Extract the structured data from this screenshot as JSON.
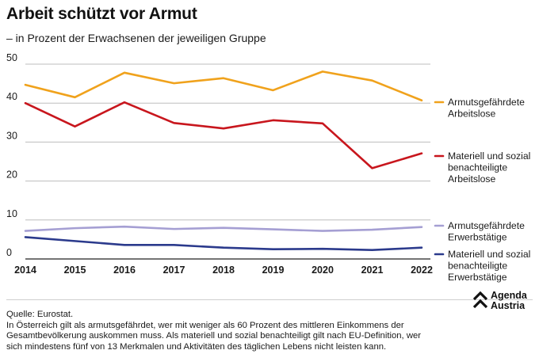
{
  "header": {
    "title": "Arbeit schützt vor Armut",
    "subtitle": "– in Prozent der Erwachsenen der jeweiligen Gruppe"
  },
  "chart_data": {
    "type": "line",
    "x": [
      "2014",
      "2015",
      "2016",
      "2017",
      "2018",
      "2019",
      "2020",
      "2021",
      "2022"
    ],
    "y_ticks": [
      "0",
      "10",
      "20",
      "30",
      "40",
      "50"
    ],
    "ylim": [
      0,
      50
    ],
    "grid": true,
    "legend_position": "right",
    "series": [
      {
        "name": "Armutsgefährdete Arbeitslose",
        "label_lines": [
          "Armutsgefährdete",
          "Arbeitslose"
        ],
        "color": "#f0a21c",
        "values": [
          44.7,
          41.5,
          47.8,
          45.1,
          46.4,
          43.3,
          48.1,
          45.8,
          40.7
        ]
      },
      {
        "name": "Materiell und sozial benachteiligte Arbeitslose",
        "label_lines": [
          "Materiell und sozial",
          "benachteiligte",
          "Arbeitslose"
        ],
        "color": "#c8161d",
        "values": [
          40.0,
          34.0,
          40.2,
          34.9,
          33.5,
          35.6,
          34.8,
          23.3,
          27.1
        ]
      },
      {
        "name": "Armutsgefährdete Erwerbstätige",
        "label_lines": [
          "Armutsgefährdete",
          "Erwerbstätige"
        ],
        "color": "#a59fd3",
        "values": [
          7.2,
          7.9,
          8.3,
          7.7,
          8.0,
          7.6,
          7.2,
          7.5,
          8.2
        ]
      },
      {
        "name": "Materiell und sozial benachteiligte Erwerbstätige",
        "label_lines": [
          "Materiell und sozial",
          "benachteiligte",
          "Erwerbstätige"
        ],
        "color": "#2b3a8c",
        "values": [
          5.6,
          4.6,
          3.6,
          3.6,
          2.9,
          2.5,
          2.6,
          2.3,
          2.9
        ]
      }
    ]
  },
  "notes": {
    "line1": "Quelle: Eurostat.",
    "line2": "In Österreich gilt als armutsgefährdet, wer mit weniger als 60 Prozent des mittleren Einkommens der",
    "line3": "Gesamtbevölkerung auskommen muss. Als materiell und sozial benachteiligt gilt nach EU-Definition, wer",
    "line4": "sich mindestens fünf von 13 Merkmalen und Aktivitäten des täglichen Lebens nicht leisten kann."
  },
  "logo": {
    "line1": "Agenda",
    "line2": "Austria",
    "icon": "agenda-austria-chevron-logo"
  }
}
